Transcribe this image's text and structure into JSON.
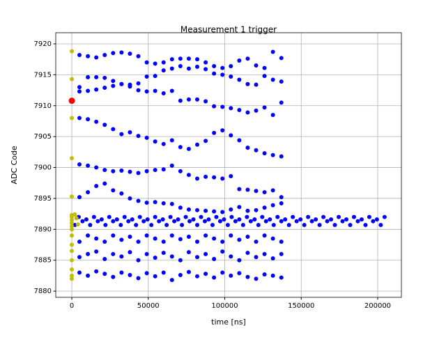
{
  "chart_data": {
    "type": "scatter",
    "title": "Measurement 1 trigger",
    "xlabel": "time [ns]",
    "ylabel": "ADC Code",
    "xlim": [
      -10500,
      215500
    ],
    "ylim": [
      7879.0,
      7921.8
    ],
    "xticks": [
      0,
      50000,
      100000,
      150000,
      200000
    ],
    "yticks": [
      7880,
      7885,
      7890,
      7895,
      7900,
      7905,
      7910,
      7915,
      7920
    ],
    "grid": true,
    "x": [
      5000,
      10500,
      16000,
      21500,
      27000,
      32500,
      38000,
      43500,
      49000,
      54500,
      60000,
      65500,
      71000,
      76500,
      82000,
      87500,
      93000,
      98500,
      104000,
      109500,
      115000,
      120500,
      126000,
      131500,
      137000
    ],
    "series": [
      {
        "color": "#0000ff",
        "values": [
          7918.2,
          7918,
          7917.8,
          7918.2,
          7918.5,
          7918.6,
          7918.4,
          7918,
          7917,
          7916.8,
          7917,
          7917.5,
          7917.6,
          7917.6,
          7917.5,
          7917,
          7916.4,
          7916.1,
          7916.4,
          7917.3,
          7917.6,
          7916.5,
          7916.1,
          7918.7,
          7917.7
        ]
      },
      {
        "color": "#0000ff",
        "values": [
          7913,
          7914.6,
          7914.6,
          7914.5,
          7914,
          7913.5,
          7913.4,
          7913.6,
          7914.7,
          7914.8,
          7915.7,
          7916,
          7916.4,
          7916,
          7916.3,
          7915.9,
          7915.2,
          7915,
          7914.7,
          7914.2,
          7913.5,
          7913.4,
          7914.8,
          7914.2,
          7913.9
        ]
      },
      {
        "color": "#0000ff",
        "values": [
          7912.3,
          7912.4,
          7912.6,
          7912.9,
          7913.2,
          7913.5,
          7913.1,
          7912.5,
          7912.3,
          7912.4,
          7912,
          7912.4,
          7910.8,
          7911,
          7911,
          7910.7,
          7909.9,
          7909.8,
          7909.6,
          7909.3,
          7908.9,
          7909.2,
          7909.7,
          7908.5,
          7910.5
        ]
      },
      {
        "color": "#0000ff",
        "values": [
          7908,
          7907.8,
          7907.4,
          7906.9,
          7906.2,
          7905.4,
          7905.7,
          7905.1,
          7904.8,
          7904.2,
          7903.8,
          7904.4,
          7903.3,
          7903,
          7903.7,
          7904.3,
          7905.6,
          7906,
          7905.2,
          7904.4,
          7903.2,
          7902.8,
          7902.3,
          7902,
          7901.8
        ]
      },
      {
        "color": "#0000ff",
        "values": [
          7900.5,
          7900.3,
          7900,
          7899.6,
          7899.4,
          7899.5,
          7899.3,
          7899.1,
          7899.4,
          7899.6,
          7899.7,
          7900.3,
          7899.4,
          7898.8,
          7898.2,
          7898.5,
          7898.4,
          7898.2,
          7898.6,
          7896.5,
          7896.4,
          7896.2,
          7896,
          7896.3,
          7895.2
        ]
      },
      {
        "color": "#0000ff",
        "values": [
          7895.2,
          7896,
          7897,
          7897.4,
          7896.3,
          7895.8,
          7895,
          7894.6,
          7894.3,
          7894.4,
          7894.2,
          7894.1,
          7893.5,
          7893.2,
          7893.1,
          7893,
          7892.9,
          7892.8,
          7893.2,
          7893.6,
          7893,
          7893.1,
          7893.5,
          7893.9,
          7894.2
        ]
      },
      {
        "color": "#0000ff",
        "values": [
          7888,
          7889,
          7888.5,
          7888,
          7889,
          7888.3,
          7888.8,
          7888,
          7889,
          7888.5,
          7888,
          7889,
          7888.4,
          7888.8,
          7888,
          7889,
          7888.5,
          7888,
          7889,
          7888.3,
          7888.8,
          7888,
          7889,
          7888.5,
          7888
        ]
      },
      {
        "color": "#0000ff",
        "values": [
          7885.5,
          7886,
          7886.4,
          7885.2,
          7886,
          7885.6,
          7886.3,
          7885,
          7886,
          7885.4,
          7886.2,
          7885.6,
          7885,
          7886.3,
          7885.5,
          7886,
          7885.2,
          7886.4,
          7885.6,
          7885,
          7886.2,
          7885.5,
          7886,
          7885.3,
          7886
        ]
      },
      {
        "color": "#0000ff",
        "values": [
          7883,
          7882.5,
          7883.2,
          7882.8,
          7882.3,
          7883,
          7882.6,
          7882.1,
          7882.9,
          7882.4,
          7883,
          7881.8,
          7882.6,
          7883.1,
          7882.4,
          7882.8,
          7882.2,
          7883,
          7882.5,
          7882.9,
          7882.3,
          7882,
          7882.7,
          7882.5,
          7882.2
        ]
      },
      {
        "color": "#0000ff",
        "x": [
          2000,
          7000,
          12000,
          17000,
          22000,
          27000,
          32000,
          37000,
          42000,
          47000,
          52000,
          57000,
          62000,
          67000,
          72000,
          77000,
          82000,
          87000,
          92000,
          97000,
          102000,
          107000,
          112000,
          117000,
          122000,
          127000,
          132000,
          137000,
          142000,
          147000,
          152000,
          157000,
          162000,
          167000,
          172000,
          177000,
          182000,
          187000,
          192000,
          197000,
          202000,
          4500,
          9500,
          14500,
          19500,
          24500,
          29500,
          34500,
          39500,
          44500,
          49500,
          54500,
          59500,
          64500,
          69500,
          74500,
          79500,
          84500,
          89500,
          94500,
          99500,
          104500,
          109500,
          114500,
          119500,
          124500,
          129500,
          134500,
          139500,
          144500,
          149500,
          154500,
          159500,
          164500,
          169500,
          174500,
          179500,
          184500,
          189500,
          194500,
          199500,
          204500
        ],
        "values": [
          7890.7,
          7891.3,
          7890.7,
          7891.3,
          7890.7,
          7891.3,
          7890.7,
          7891.3,
          7890.7,
          7891.3,
          7890.7,
          7891.3,
          7890.7,
          7891.3,
          7890.7,
          7891.3,
          7890.7,
          7891.3,
          7890.7,
          7891.3,
          7890.7,
          7891.3,
          7890.7,
          7891.3,
          7890.7,
          7891.3,
          7890.7,
          7891.3,
          7890.7,
          7891.3,
          7890.7,
          7891.3,
          7890.7,
          7891.3,
          7890.7,
          7891.3,
          7890.7,
          7891.3,
          7890.7,
          7891.3,
          7890.7,
          7892,
          7891.6,
          7892,
          7891.6,
          7892,
          7891.6,
          7892,
          7891.6,
          7892,
          7891.6,
          7892,
          7891.6,
          7892,
          7891.6,
          7892,
          7891.6,
          7892,
          7891.6,
          7892,
          7891.6,
          7892,
          7891.6,
          7892,
          7891.6,
          7892,
          7891.6,
          7892,
          7891.6,
          7892,
          7891.6,
          7892,
          7891.6,
          7892,
          7891.6,
          7892,
          7891.6,
          7892,
          7891.6,
          7892,
          7891.6,
          7892
        ]
      },
      {
        "color": "#bfbf00",
        "x": [
          0,
          0,
          0,
          0,
          0,
          0,
          0,
          0,
          0,
          0,
          0,
          0,
          0,
          0,
          0,
          0,
          0,
          0,
          3000,
          4000,
          2000
        ],
        "values": [
          7918.8,
          7914.3,
          7908,
          7901.5,
          7895.3,
          7892.3,
          7892,
          7891.5,
          7891,
          7890.5,
          7890,
          7889,
          7887.5,
          7886.5,
          7885,
          7883.5,
          7882.5,
          7882,
          7891.8,
          7890.8,
          7892.4
        ]
      },
      {
        "color": "#ff0000",
        "x": [
          0
        ],
        "values": [
          7910.8
        ]
      }
    ]
  }
}
